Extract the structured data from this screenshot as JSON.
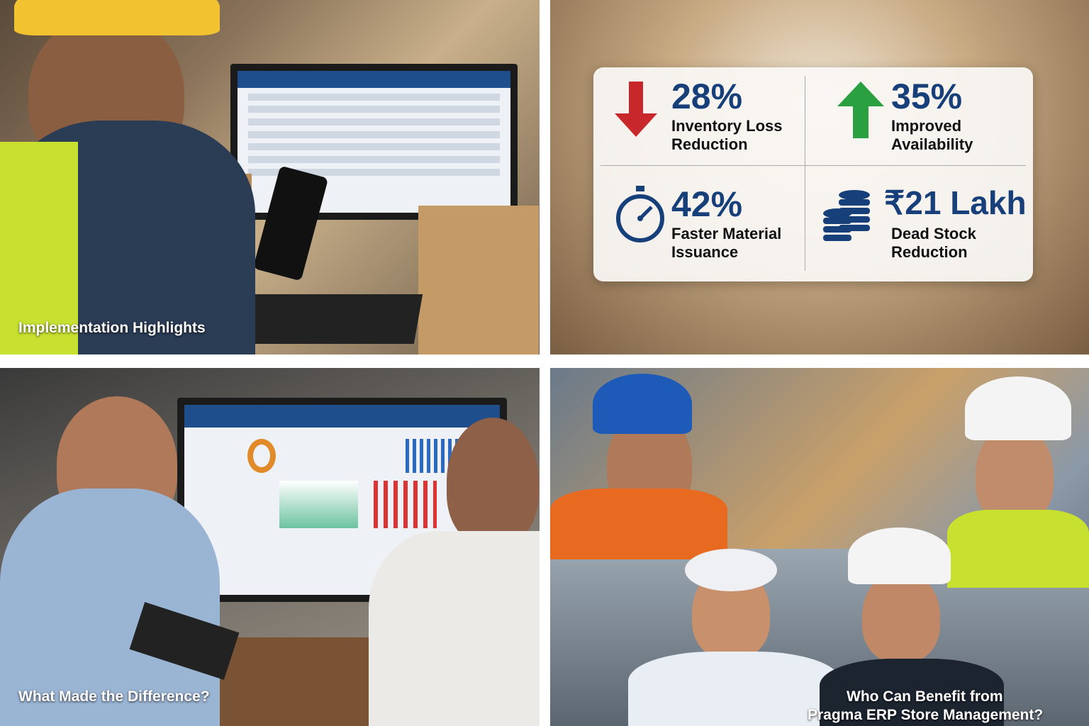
{
  "panels": {
    "implementation": {
      "caption": "Implementation Highlights"
    },
    "results": {
      "stats": [
        {
          "value": "28%",
          "label": "Inventory Loss Reduction",
          "icon": "arrow-down-icon",
          "color": "#c8282c"
        },
        {
          "value": "35%",
          "label": "Improved Availability",
          "icon": "arrow-up-icon",
          "color": "#2aa040"
        },
        {
          "value": "42%",
          "label": "Faster Material Issuance",
          "icon": "stopwatch-icon",
          "color": "#17407a"
        },
        {
          "value": "₹21 Lakh",
          "label": "Dead Stock Reduction",
          "icon": "coins-icon",
          "color": "#17407a"
        }
      ]
    },
    "difference": {
      "caption": "What Made the Difference?"
    },
    "beneficiaries": {
      "caption_line1": "Who Can Benefit from",
      "caption_line2": "Pragma ERP Store Management?"
    }
  },
  "colors": {
    "accent": "#17407a",
    "down": "#c8282c",
    "up": "#2aa040"
  }
}
